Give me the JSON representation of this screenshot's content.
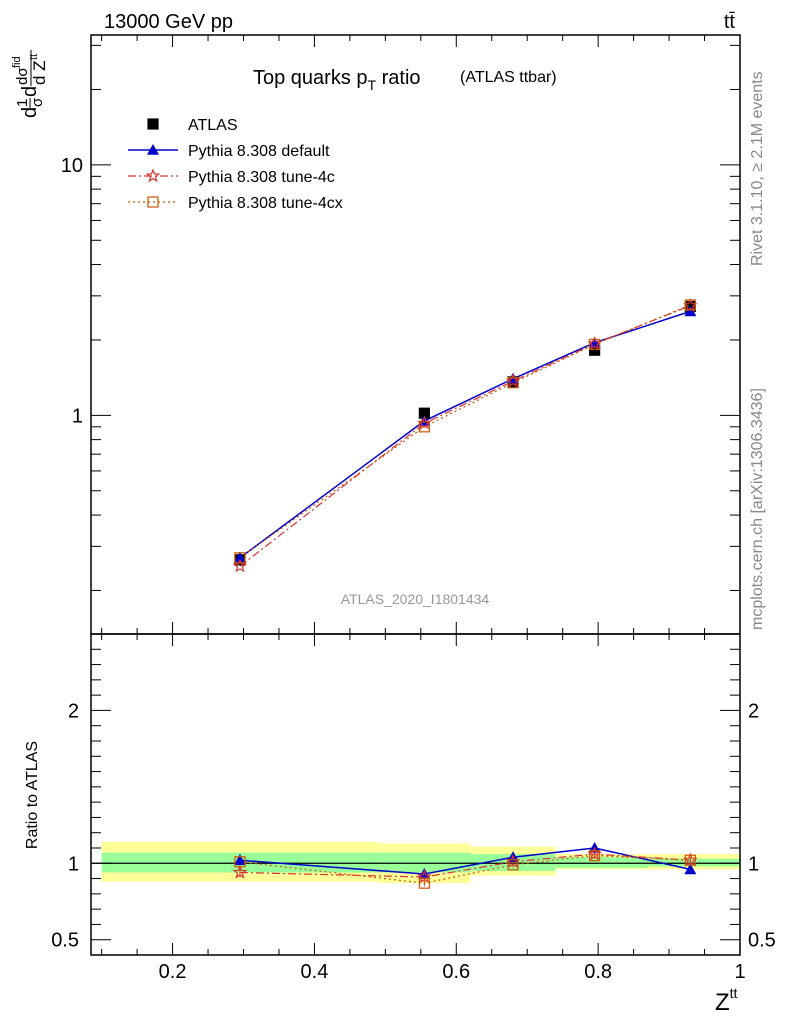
{
  "header": {
    "energy_label": "13000 GeV pp",
    "process_label": "tt̄"
  },
  "side_labels": {
    "rivet": "Rivet 3.1.10, ≥ 2.1M events",
    "mcplots": "mcplots.cern.ch [arXiv:1306.3436]"
  },
  "watermark": "ATLAS_2020_I1801434",
  "colors": {
    "atlas": "#000000",
    "default": "#0000cc",
    "tune4c": "#dd3333",
    "tune4cx": "#cc5500",
    "band_inner": "#99ff99",
    "band_outer": "#ffff99"
  },
  "chart_data": [
    {
      "panel": "main",
      "type": "line",
      "title": "Top quarks p",
      "title_sub": "T",
      "title_suffix": " ratio",
      "title_note": "(ATLAS ttbar)",
      "ylabel": "1/σ dσ^fid / d Z^tt",
      "yscale": "log",
      "xlim": [
        0.085,
        1.0
      ],
      "ylim": [
        0.134,
        33.0
      ],
      "y_tick_labels": [
        "1",
        "10"
      ],
      "legend_position": "top-left",
      "series": [
        {
          "name": "ATLAS",
          "style": "data",
          "x": [
            0.295,
            0.555,
            0.68,
            0.795,
            0.93
          ],
          "y": [
            0.265,
            1.02,
            1.36,
            1.82,
            2.72
          ]
        },
        {
          "name": "Pythia 8.308 default",
          "style": "solid-triangle",
          "x": [
            0.295,
            0.555,
            0.68,
            0.795,
            0.93
          ],
          "y": [
            0.27,
            0.95,
            1.4,
            1.95,
            2.6
          ]
        },
        {
          "name": "Pythia 8.308 tune-4c",
          "style": "dashdot-star",
          "x": [
            0.295,
            0.555,
            0.68,
            0.795,
            0.93
          ],
          "y": [
            0.25,
            0.93,
            1.37,
            1.93,
            2.74
          ]
        },
        {
          "name": "Pythia 8.308 tune-4cx",
          "style": "dotted-square",
          "x": [
            0.295,
            0.555,
            0.68,
            0.795,
            0.93
          ],
          "y": [
            0.27,
            0.9,
            1.35,
            1.92,
            2.76
          ]
        }
      ]
    },
    {
      "panel": "ratio",
      "type": "line",
      "ylabel": "Ratio to ATLAS",
      "xlabel": "Z",
      "xlabel_sup": "tt",
      "xlim": [
        0.085,
        1.0
      ],
      "ylim": [
        0.4,
        2.5
      ],
      "y_tick_labels": [
        "0.5",
        "1",
        "2"
      ],
      "x_tick_labels": [
        "0.2",
        "0.4",
        "0.6",
        "0.8",
        "1"
      ],
      "bands": [
        {
          "x_range": [
            0.1,
            0.49
          ],
          "inner": [
            0.94,
            1.07
          ],
          "outer": [
            0.88,
            1.14
          ]
        },
        {
          "x_range": [
            0.49,
            0.62
          ],
          "inner": [
            0.94,
            1.07
          ],
          "outer": [
            0.87,
            1.13
          ]
        },
        {
          "x_range": [
            0.62,
            0.74
          ],
          "inner": [
            0.95,
            1.06
          ],
          "outer": [
            0.92,
            1.11
          ]
        },
        {
          "x_range": [
            0.74,
            0.87
          ],
          "inner": [
            0.97,
            1.04
          ],
          "outer": [
            0.96,
            1.06
          ]
        },
        {
          "x_range": [
            0.87,
            1.0
          ],
          "inner": [
            0.98,
            1.03
          ],
          "outer": [
            0.96,
            1.06
          ]
        }
      ],
      "series": [
        {
          "name": "Pythia 8.308 default",
          "x": [
            0.295,
            0.555,
            0.68,
            0.795,
            0.93
          ],
          "y": [
            1.02,
            0.93,
            1.04,
            1.1,
            0.96
          ],
          "err": [
            0.04,
            0.03,
            0.03,
            0.03,
            0.0
          ]
        },
        {
          "name": "Pythia 8.308 tune-4c",
          "x": [
            0.295,
            0.555,
            0.68,
            0.795,
            0.93
          ],
          "y": [
            0.94,
            0.91,
            1.01,
            1.06,
            1.02
          ],
          "err": [
            0.03,
            0.02,
            0.02,
            0.02,
            0.02
          ]
        },
        {
          "name": "Pythia 8.308 tune-4cx",
          "x": [
            0.295,
            0.555,
            0.68,
            0.795,
            0.93
          ],
          "y": [
            1.01,
            0.87,
            0.99,
            1.05,
            1.02
          ],
          "err": [
            0.03,
            0.02,
            0.02,
            0.02,
            0.02
          ]
        }
      ]
    }
  ]
}
